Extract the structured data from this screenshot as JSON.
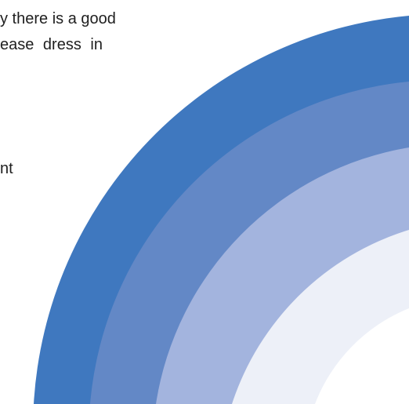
{
  "text": {
    "line1": "y there is a good",
    "line2": "ease dress in",
    "line3": "nt"
  },
  "graphic": {
    "name": "rainbow-arc",
    "colors": [
      "#3f78bf",
      "#6388c6",
      "#a3b4de",
      "#edf0f8"
    ]
  }
}
